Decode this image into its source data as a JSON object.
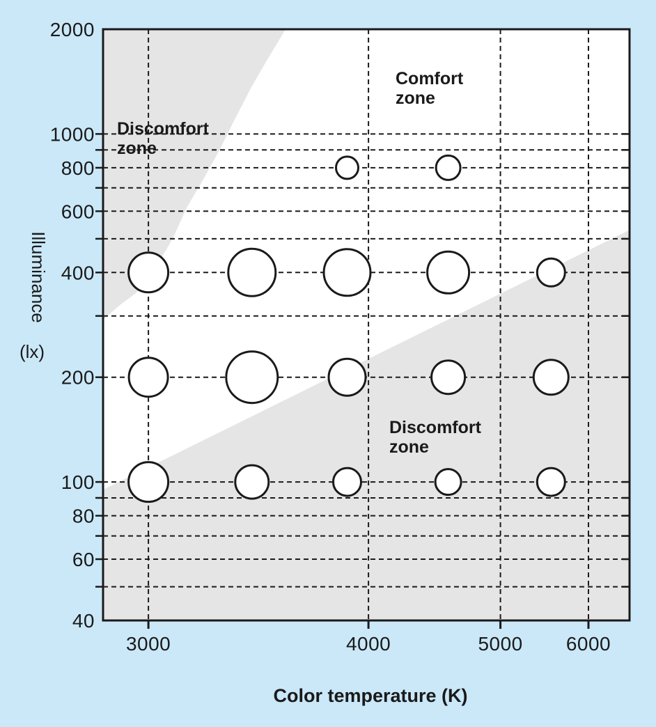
{
  "figure": {
    "background_color": "#cbe8f8",
    "zone_fill_color": "#e6e5e6",
    "ink_color": "#1a1a1a",
    "plot_background": "#ffffff"
  },
  "axes": {
    "x_title": "Color temperature (K)",
    "y_title_main": "Illuminance",
    "y_title_unit": "(lx)",
    "x_tick_labels": [
      "3000",
      "4000",
      "5000",
      "6000"
    ],
    "y_tick_labels": [
      "2000",
      "1000",
      "800",
      "600",
      "400",
      "200",
      "100",
      "80",
      "60",
      "40"
    ]
  },
  "zone_labels": {
    "comfort": {
      "line1": "Comfort",
      "line2": "zone"
    },
    "discomfort_upper": {
      "line1": "Discomfort",
      "line2": "zone"
    },
    "discomfort_lower": {
      "line1": "Discomfort",
      "line2": "zone"
    }
  },
  "chart_data": {
    "type": "scatter",
    "subtype": "bubble",
    "title": "",
    "xlabel": "Color temperature (K)",
    "ylabel": "Illuminance (lx)",
    "x_scale": "mired-linear (reciprocal color temperature)",
    "y_scale": "log10",
    "xlim": [
      2853,
      6618
    ],
    "ylim": [
      40,
      2000
    ],
    "x_ticks": [
      3000,
      4000,
      5000,
      6000
    ],
    "y_ticks_labeled": [
      2000,
      1000,
      800,
      600,
      400,
      200,
      100,
      80,
      60,
      40
    ],
    "y_gridlines": [
      1000,
      900,
      800,
      700,
      600,
      500,
      400,
      300,
      200,
      100,
      90,
      80,
      70,
      60,
      50
    ],
    "grid": "dashed, black, on white/gray zones",
    "legend": "none",
    "bubble_size_unit": "diameter_px (larger circle = stronger preference at that condition)",
    "bubble_columns_cct": [
      3000,
      3400,
      3875,
      4550,
      5530
    ],
    "bubble_rows_lux": [
      800,
      400,
      200,
      100
    ],
    "points": [
      {
        "cct": 3875,
        "lux": 800,
        "d": 32
      },
      {
        "cct": 4550,
        "lux": 800,
        "d": 35
      },
      {
        "cct": 3000,
        "lux": 400,
        "d": 57
      },
      {
        "cct": 3400,
        "lux": 400,
        "d": 68
      },
      {
        "cct": 3875,
        "lux": 400,
        "d": 67
      },
      {
        "cct": 4550,
        "lux": 400,
        "d": 60
      },
      {
        "cct": 5530,
        "lux": 400,
        "d": 40
      },
      {
        "cct": 3000,
        "lux": 200,
        "d": 56
      },
      {
        "cct": 3400,
        "lux": 200,
        "d": 74
      },
      {
        "cct": 3875,
        "lux": 200,
        "d": 53
      },
      {
        "cct": 4550,
        "lux": 200,
        "d": 48
      },
      {
        "cct": 5530,
        "lux": 200,
        "d": 50
      },
      {
        "cct": 3000,
        "lux": 100,
        "d": 57
      },
      {
        "cct": 3400,
        "lux": 100,
        "d": 48
      },
      {
        "cct": 3875,
        "lux": 100,
        "d": 40
      },
      {
        "cct": 4550,
        "lux": 100,
        "d": 37
      },
      {
        "cct": 5530,
        "lux": 100,
        "d": 40
      }
    ],
    "zones": [
      {
        "name": "Discomfort zone (upper left, low CCT / high illuminance)",
        "boundary_cct_lux": [
          [
            3554,
            2000
          ],
          [
            3460,
            1600
          ],
          [
            3398,
            1365
          ],
          [
            3320,
            1080
          ],
          [
            3264,
            900
          ],
          [
            3197,
            735
          ],
          [
            3137,
            615
          ],
          [
            3085,
            500
          ],
          [
            3022,
            410
          ],
          [
            2960,
            350
          ],
          [
            2901,
            320
          ],
          [
            2853,
            292
          ]
        ],
        "closes_toward": "top-left corner"
      },
      {
        "name": "Discomfort zone (lower right, low illuminance)",
        "boundary_cct_lux": [
          [
            2853,
            95
          ],
          [
            6618,
            530
          ]
        ],
        "closes_toward": "bottom edge"
      },
      {
        "name": "Comfort zone",
        "description": "white region between the two gray discomfort zones"
      }
    ]
  }
}
